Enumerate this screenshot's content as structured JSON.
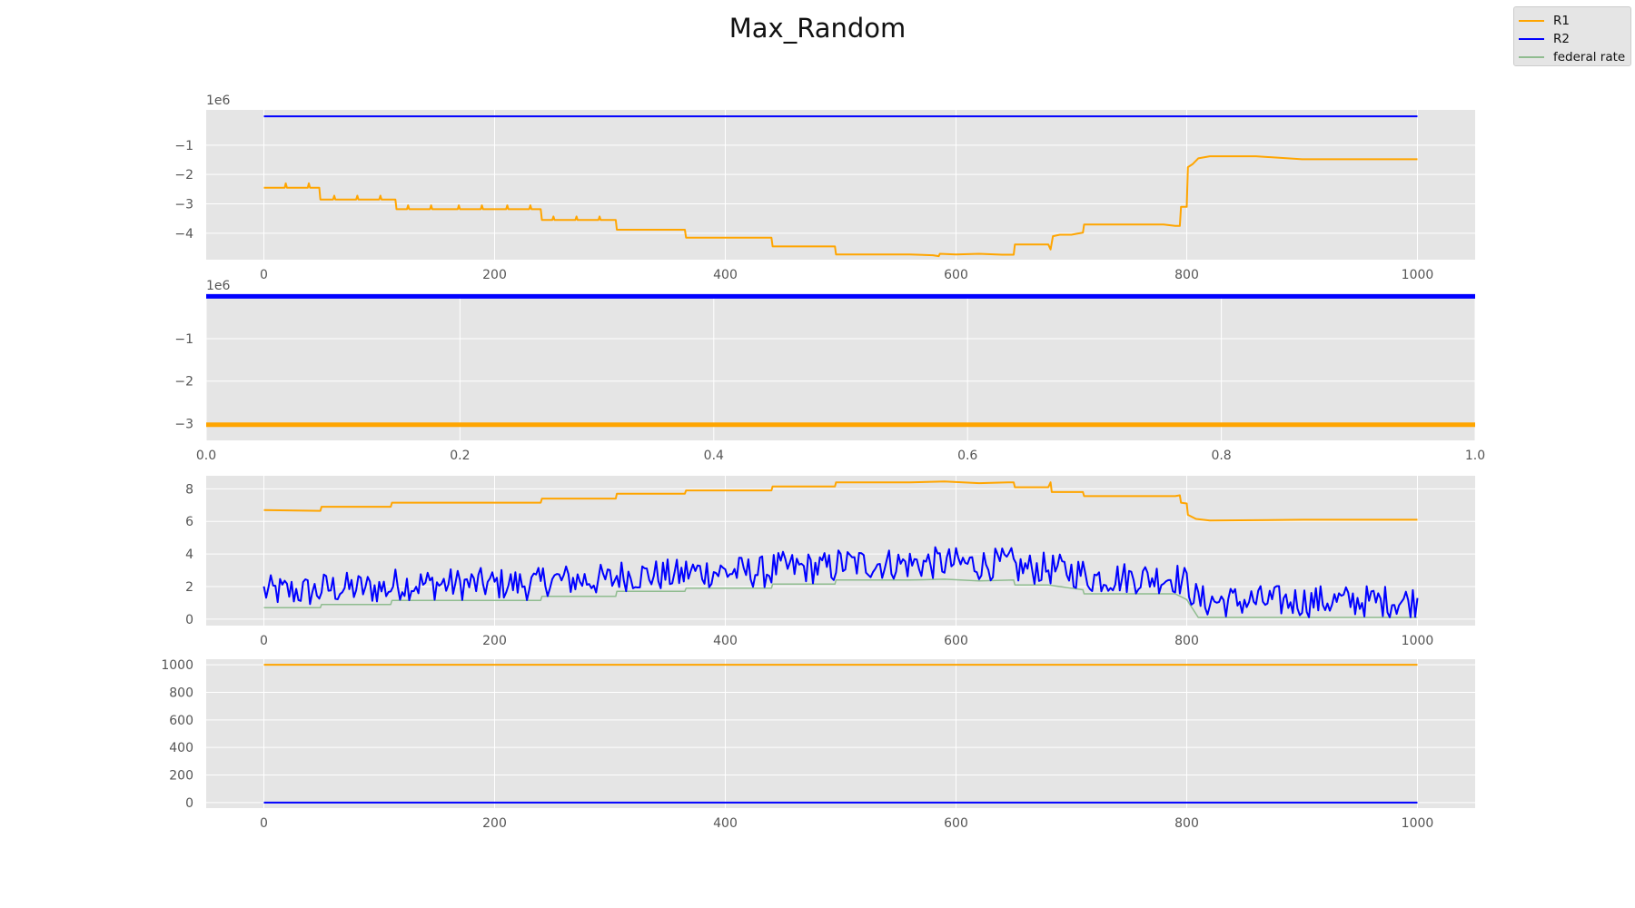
{
  "figure": {
    "title": "Max_Random",
    "legend": {
      "placement": "top-right",
      "items": [
        {
          "label": "R1",
          "color": "#ffa500"
        },
        {
          "label": "R2",
          "color": "#0000ff"
        },
        {
          "label": "federal rate",
          "color": "#8fbc8f"
        }
      ]
    }
  },
  "chart_data": [
    {
      "type": "line",
      "title": "",
      "offset_label": "1e6",
      "xlim": [
        -50,
        1050
      ],
      "ylim": [
        -4.9,
        0.2
      ],
      "xticks": [
        "0",
        "200",
        "400",
        "600",
        "800",
        "1000"
      ],
      "yticks": [
        "−1",
        "−2",
        "−3",
        "−4"
      ],
      "series": [
        {
          "name": "R2",
          "color": "#0000ff",
          "x": [
            0,
            1000
          ],
          "y": [
            -0.02,
            -0.02
          ]
        },
        {
          "name": "R1",
          "color": "#ffa500",
          "x": [
            0,
            18,
            19,
            20,
            38,
            39,
            40,
            48,
            49,
            60,
            61,
            62,
            80,
            81,
            82,
            100,
            101,
            102,
            114,
            115,
            124,
            125,
            126,
            144,
            145,
            146,
            168,
            169,
            170,
            188,
            189,
            190,
            210,
            211,
            212,
            230,
            231,
            232,
            240,
            241,
            250,
            251,
            252,
            270,
            271,
            272,
            290,
            291,
            292,
            305,
            306,
            365,
            366,
            440,
            441,
            495,
            496,
            560,
            580,
            585,
            586,
            600,
            620,
            640,
            650,
            651,
            680,
            682,
            684,
            690,
            700,
            710,
            711,
            780,
            790,
            794,
            795,
            800,
            801,
            805,
            810,
            820,
            860,
            900,
            1000
          ],
          "y": [
            -2.45,
            -2.45,
            -2.3,
            -2.45,
            -2.45,
            -2.3,
            -2.45,
            -2.45,
            -2.85,
            -2.85,
            -2.72,
            -2.85,
            -2.85,
            -2.72,
            -2.85,
            -2.85,
            -2.72,
            -2.85,
            -2.85,
            -3.18,
            -3.18,
            -3.05,
            -3.18,
            -3.18,
            -3.05,
            -3.18,
            -3.18,
            -3.05,
            -3.18,
            -3.18,
            -3.05,
            -3.18,
            -3.18,
            -3.05,
            -3.18,
            -3.18,
            -3.05,
            -3.18,
            -3.18,
            -3.55,
            -3.55,
            -3.43,
            -3.55,
            -3.55,
            -3.43,
            -3.55,
            -3.55,
            -3.43,
            -3.55,
            -3.55,
            -3.88,
            -3.88,
            -4.15,
            -4.15,
            -4.45,
            -4.45,
            -4.72,
            -4.72,
            -4.75,
            -4.78,
            -4.7,
            -4.72,
            -4.7,
            -4.73,
            -4.73,
            -4.38,
            -4.38,
            -4.55,
            -4.1,
            -4.05,
            -4.05,
            -3.98,
            -3.7,
            -3.7,
            -3.75,
            -3.75,
            -3.1,
            -3.1,
            -1.75,
            -1.65,
            -1.45,
            -1.38,
            -1.38,
            -1.48,
            -1.48
          ]
        }
      ]
    },
    {
      "type": "line",
      "title": "",
      "offset_label": "1e6",
      "xlim": [
        0,
        1
      ],
      "ylim": [
        -3.4,
        0.03
      ],
      "xticks": [
        "0.0",
        "0.2",
        "0.4",
        "0.6",
        "0.8",
        "1.0"
      ],
      "yticks": [
        "−1",
        "−2",
        "−3"
      ],
      "series": [
        {
          "name": "R2",
          "color": "#0000ff",
          "x": [
            0,
            1
          ],
          "y": [
            0,
            0
          ]
        },
        {
          "name": "R1",
          "color": "#ffa500",
          "x": [
            0,
            1
          ],
          "y": [
            -3.03,
            -3.03
          ]
        }
      ]
    },
    {
      "type": "line",
      "title": "",
      "xlim": [
        -50,
        1050
      ],
      "ylim": [
        -0.4,
        8.8
      ],
      "xticks": [
        "0",
        "200",
        "400",
        "600",
        "800",
        "1000"
      ],
      "yticks": [
        "0",
        "2",
        "4",
        "6",
        "8"
      ],
      "series": [
        {
          "name": "R1",
          "color": "#ffa500",
          "x": [
            0,
            49,
            50,
            110,
            111,
            240,
            241,
            305,
            306,
            365,
            366,
            440,
            441,
            495,
            496,
            560,
            590,
            620,
            645,
            650,
            651,
            680,
            682,
            683,
            710,
            711,
            790,
            794,
            795,
            800,
            801,
            808,
            820,
            900,
            1000
          ],
          "y": [
            6.7,
            6.65,
            6.9,
            6.9,
            7.15,
            7.15,
            7.4,
            7.4,
            7.7,
            7.7,
            7.9,
            7.9,
            8.15,
            8.15,
            8.4,
            8.4,
            8.45,
            8.35,
            8.4,
            8.4,
            8.1,
            8.1,
            8.4,
            7.8,
            7.8,
            7.55,
            7.55,
            7.6,
            7.15,
            7.1,
            6.4,
            6.15,
            6.05,
            6.1,
            6.1
          ]
        },
        {
          "name": "federal rate",
          "color": "#8fbc8f",
          "x": [
            0,
            49,
            50,
            110,
            111,
            240,
            241,
            305,
            306,
            365,
            366,
            440,
            441,
            495,
            496,
            560,
            590,
            620,
            650,
            651,
            680,
            710,
            711,
            790,
            800,
            810,
            1000
          ],
          "y": [
            0.7,
            0.7,
            0.9,
            0.9,
            1.15,
            1.15,
            1.4,
            1.4,
            1.7,
            1.7,
            1.9,
            1.9,
            2.15,
            2.15,
            2.4,
            2.4,
            2.45,
            2.35,
            2.4,
            2.1,
            2.1,
            1.8,
            1.55,
            1.55,
            1.2,
            0.1,
            0.1
          ]
        },
        {
          "name": "R2",
          "color": "#0000ff",
          "x": [
            0,
            800
          ],
          "y": [
            1.7,
            3.0
          ]
        }
      ]
    },
    {
      "type": "line",
      "title": "",
      "xlim": [
        -50,
        1050
      ],
      "ylim": [
        -40,
        1040
      ],
      "xticks": [
        "0",
        "200",
        "400",
        "600",
        "800",
        "1000"
      ],
      "yticks": [
        "0",
        "200",
        "400",
        "600",
        "800",
        "1000"
      ],
      "series": [
        {
          "name": "R1",
          "color": "#ffa500",
          "x": [
            0,
            1000
          ],
          "y": [
            1000,
            1000
          ]
        },
        {
          "name": "R2",
          "color": "#0000ff",
          "x": [
            0,
            1000
          ],
          "y": [
            0,
            0
          ]
        }
      ]
    }
  ]
}
